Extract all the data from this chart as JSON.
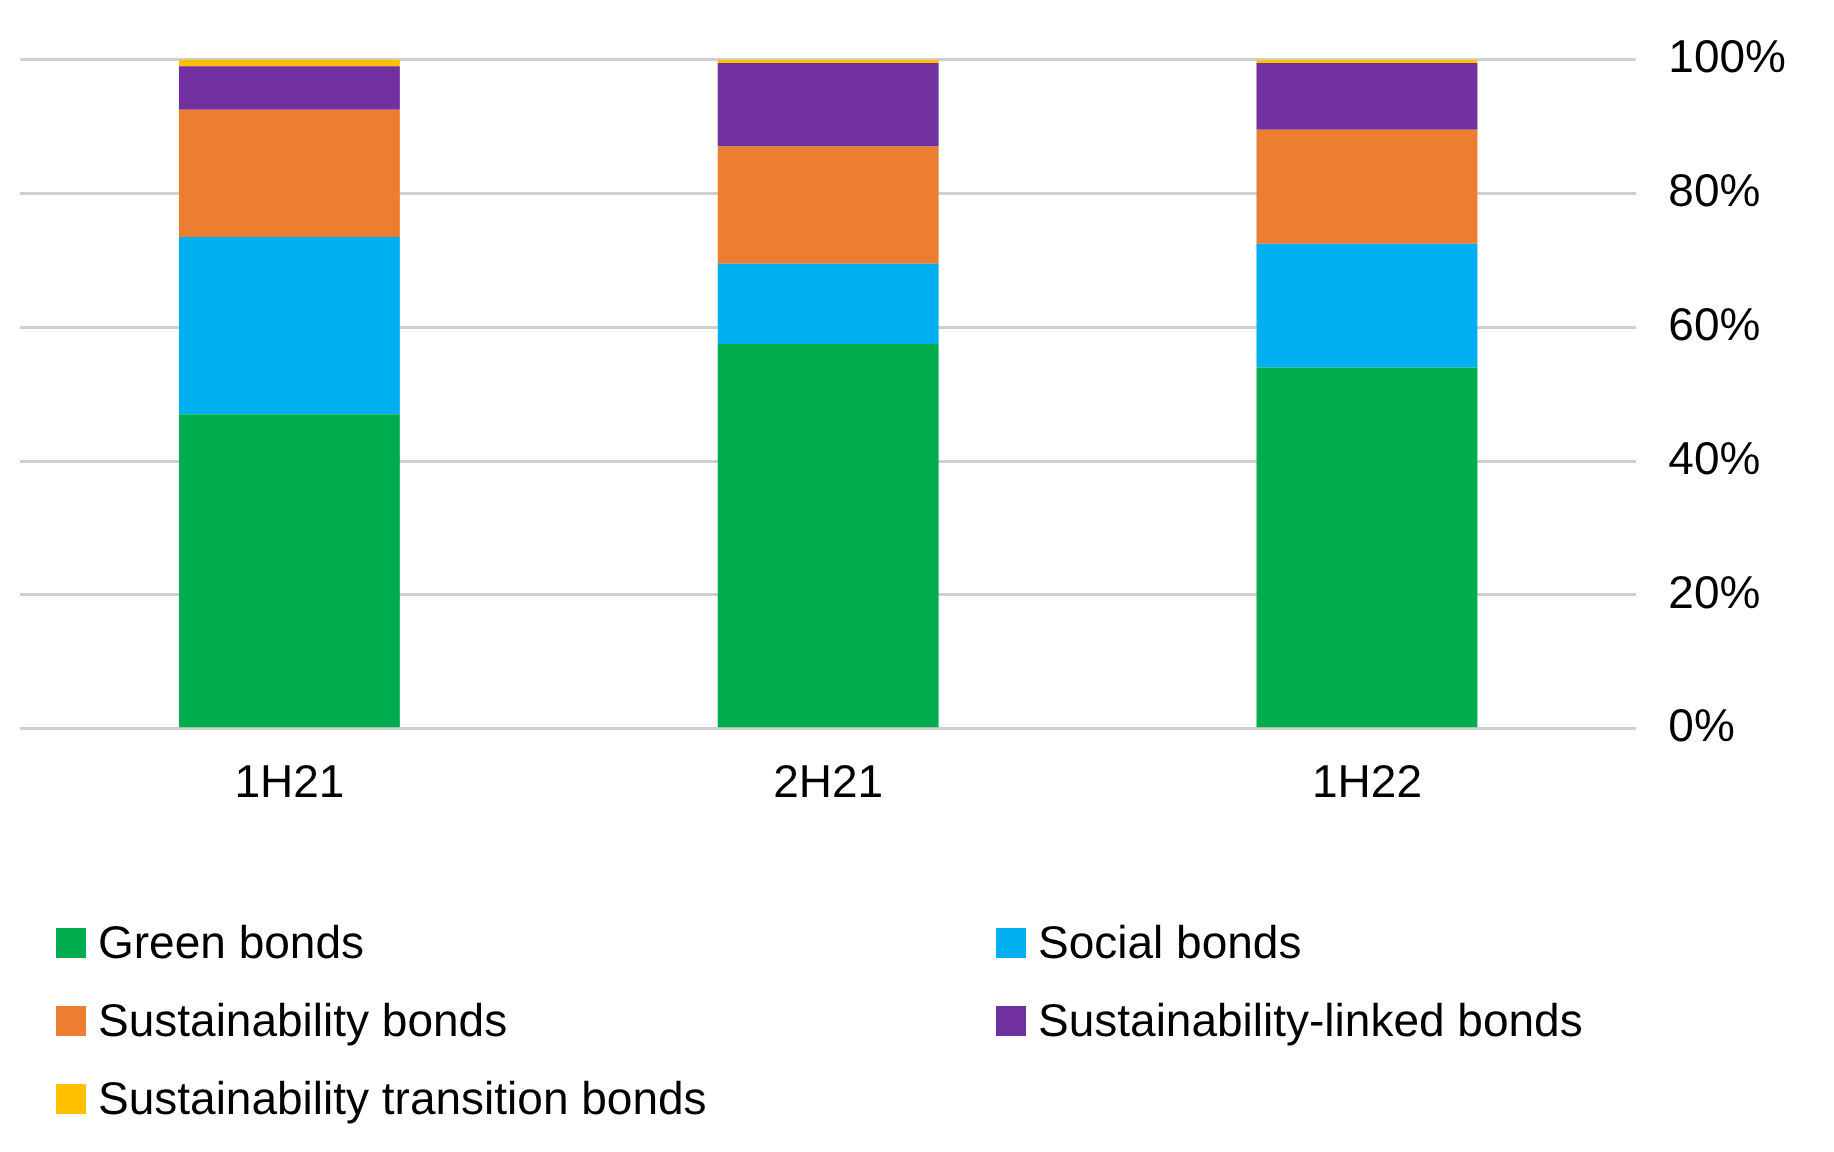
{
  "chart_data": {
    "type": "bar",
    "stacked": true,
    "categories": [
      "1H21",
      "2H21",
      "1H22"
    ],
    "series": [
      {
        "name": "Green bonds",
        "color": "#00ad4e",
        "values": [
          47,
          57.5,
          54
        ]
      },
      {
        "name": "Social bonds",
        "color": "#00b0f0",
        "values": [
          26.5,
          12,
          18.5
        ]
      },
      {
        "name": "Sustainability bonds",
        "color": "#ed7d31",
        "values": [
          19,
          17.5,
          17
        ]
      },
      {
        "name": "Sustainability-linked bonds",
        "color": "#7030a0",
        "values": [
          6.5,
          12.5,
          10
        ]
      },
      {
        "name": "Sustainability transition bonds",
        "color": "#ffc000",
        "values": [
          1,
          0.5,
          0.5
        ]
      }
    ],
    "ylim": [
      0,
      100
    ],
    "yticks": [
      {
        "value": 0,
        "label": "0%"
      },
      {
        "value": 20,
        "label": "20%"
      },
      {
        "value": 40,
        "label": "40%"
      },
      {
        "value": 60,
        "label": "60%"
      },
      {
        "value": 80,
        "label": "80%"
      },
      {
        "value": 100,
        "label": "100%"
      }
    ],
    "grid": "y",
    "legend": "bottom"
  }
}
